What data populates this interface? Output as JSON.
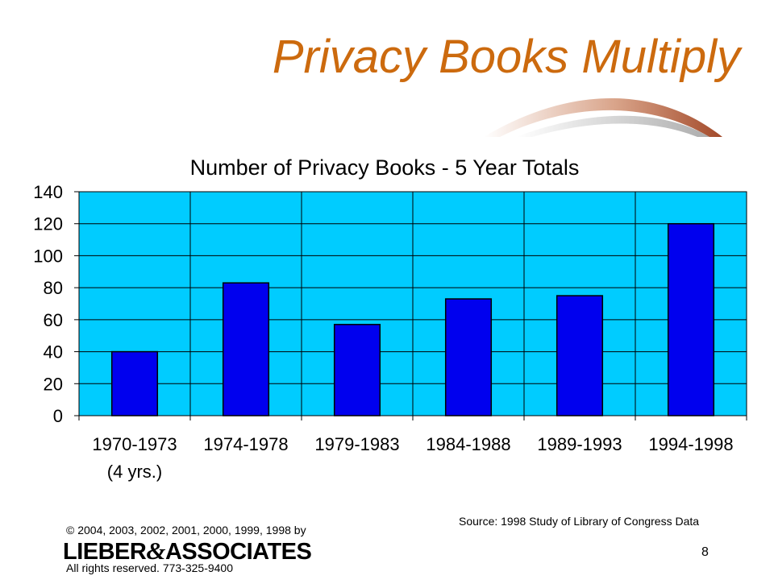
{
  "slide": {
    "title": "Privacy Books Multiply",
    "source": "Source: 1998 Study of Library of Congress Data",
    "copyright": "© 2004, 2003, 2002, 2001, 2000, 1999, 1998 by",
    "logo_left": "LIEBER",
    "logo_amp": "&",
    "logo_right": "ASSOCIATES",
    "rights": "All rights reserved. 773-325-9400",
    "page_number": "8"
  },
  "colors": {
    "title": "#cc6a0e",
    "plot_background": "#00ccff",
    "bar_fill": "#0000ee",
    "bar_stroke": "#000000"
  },
  "chart_data": {
    "type": "bar",
    "title": "Number of Privacy Books - 5 Year Totals",
    "categories": [
      "1970-1973",
      "1974-1978",
      "1979-1983",
      "1984-1988",
      "1989-1993",
      "1994-1998"
    ],
    "category_notes": [
      "(4 yrs.)",
      "",
      "",
      "",
      "",
      ""
    ],
    "values": [
      40,
      83,
      57,
      73,
      75,
      120
    ],
    "ylim": [
      0,
      140
    ],
    "yticks": [
      0,
      20,
      40,
      60,
      80,
      100,
      120,
      140
    ],
    "grid": "horizontal and vertical",
    "legend": "none"
  }
}
